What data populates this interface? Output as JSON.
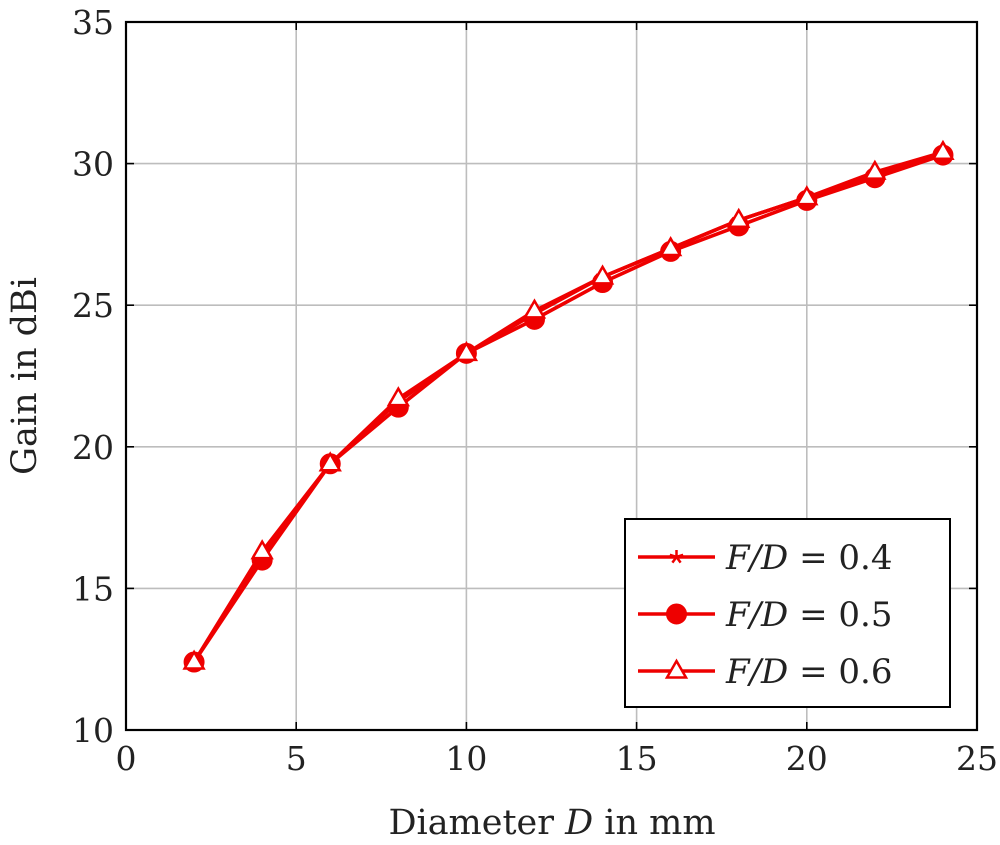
{
  "chart_data": {
    "type": "line",
    "title": "",
    "xlabel_prefix": "Diameter ",
    "xlabel_var": "D",
    "xlabel_suffix": " in mm",
    "ylabel": "Gain in dBi",
    "xlim": [
      0,
      25
    ],
    "ylim": [
      10,
      35
    ],
    "xticks": [
      0,
      5,
      10,
      15,
      20,
      25
    ],
    "yticks": [
      10,
      15,
      20,
      25,
      30,
      35
    ],
    "grid": true,
    "legend_position": "bottom-right",
    "x": [
      2,
      4,
      6,
      8,
      10,
      12,
      14,
      16,
      18,
      20,
      22,
      24
    ],
    "series": [
      {
        "name_var": "F/D",
        "name_value": "= 0.4",
        "marker": "star",
        "color": "#ee0000",
        "values": [
          12.4,
          16.2,
          19.4,
          21.6,
          23.3,
          24.7,
          26.0,
          27.0,
          28.0,
          28.8,
          29.6,
          30.3
        ]
      },
      {
        "name_var": "F/D",
        "name_value": "= 0.5",
        "marker": "circle",
        "color": "#ee0000",
        "values": [
          12.4,
          16.0,
          19.4,
          21.4,
          23.3,
          24.5,
          25.8,
          26.9,
          27.8,
          28.7,
          29.5,
          30.3
        ]
      },
      {
        "name_var": "F/D",
        "name_value": "= 0.6",
        "marker": "triangle",
        "color": "#ee0000",
        "values": [
          12.4,
          16.3,
          19.4,
          21.7,
          23.3,
          24.8,
          26.0,
          27.0,
          28.0,
          28.8,
          29.7,
          30.4
        ]
      }
    ]
  }
}
